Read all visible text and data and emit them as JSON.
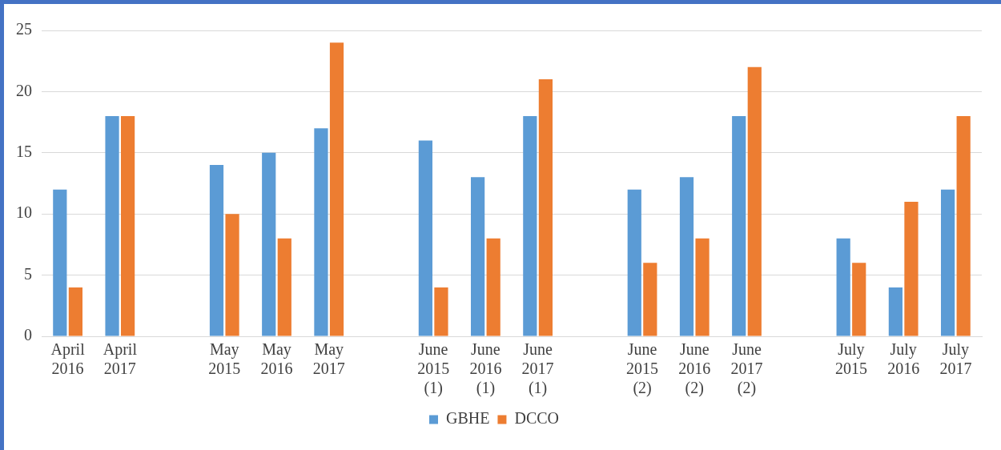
{
  "chart_data": {
    "type": "bar",
    "categories": [
      "April 2016",
      "April 2017",
      null,
      "May 2015",
      "May 2016",
      "May 2017",
      null,
      "June 2015 (1)",
      "June 2016 (1)",
      "June 2017 (1)",
      null,
      "June 2015 (2)",
      "June 2016 (2)",
      "June 2017 (2)",
      null,
      "July 2015",
      "July 2016",
      "July 2017"
    ],
    "series": [
      {
        "name": "GBHE",
        "color": "#5b9bd5",
        "values": [
          12,
          18,
          null,
          14,
          15,
          17,
          null,
          16,
          13,
          18,
          null,
          12,
          13,
          18,
          null,
          8,
          4,
          12
        ]
      },
      {
        "name": "DCCO",
        "color": "#ed7d31",
        "values": [
          4,
          18,
          null,
          10,
          8,
          24,
          null,
          4,
          8,
          21,
          null,
          6,
          8,
          22,
          null,
          6,
          11,
          18
        ]
      }
    ],
    "ylim": [
      0,
      25
    ],
    "yticks": [
      0,
      5,
      10,
      15,
      20,
      25
    ],
    "grid": "y",
    "legend": "bottom"
  }
}
